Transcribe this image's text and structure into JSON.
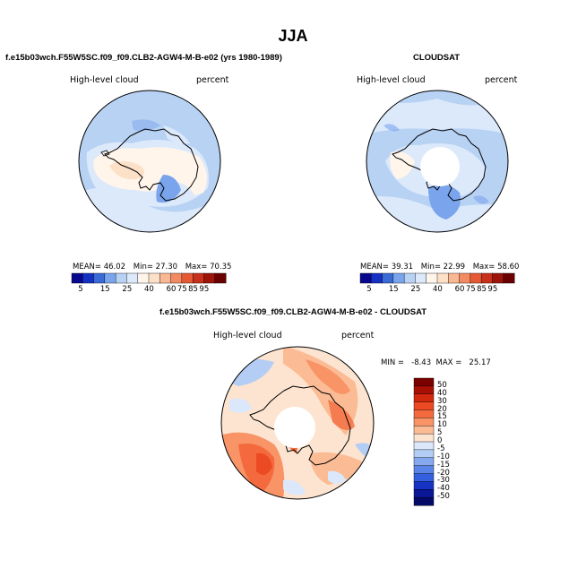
{
  "title": "JJA",
  "panels": {
    "model": {
      "run_title": "f.e15b03wch.F55W5SC.f09_f09.CLB2-AGW4-M-B-e02 (yrs 1980-1989)",
      "variable": "High-level cloud",
      "units": "percent",
      "mean_label": "MEAN=",
      "mean": "46.02",
      "min_label": "Min=",
      "min": "27.30",
      "max_label": "Max=",
      "max": "70.35"
    },
    "obs": {
      "run_title": "CLOUDSAT",
      "variable": "High-level cloud",
      "units": "percent",
      "mean_label": "MEAN=",
      "mean": "39.31",
      "min_label": "Min=",
      "min": "22.99",
      "max_label": "Max=",
      "max": "58.60"
    },
    "diff": {
      "run_title": "f.e15b03wch.F55W5SC.f09_f09.CLB2-AGW4-M-B-e02 - CLOUDSAT",
      "variable": "High-level cloud",
      "units": "percent",
      "minmax_text": "MIN =   -8.43  MAX =   25.17"
    }
  },
  "absolute_colorbar": {
    "labels": [
      "5",
      "15",
      "25",
      "40",
      "60",
      "75",
      "85",
      "95"
    ],
    "colors": [
      "#08088f",
      "#1531c4",
      "#3a6ad6",
      "#7aa4ec",
      "#b8d2f4",
      "#dbe9fb",
      "#fff5ea",
      "#fce0c8",
      "#f8b893",
      "#f28a62",
      "#e55a35",
      "#c7301a",
      "#9c1508",
      "#6a0000"
    ]
  },
  "diff_colorbar": {
    "labels": [
      "50",
      "40",
      "30",
      "20",
      "15",
      "10",
      "5",
      "0",
      "-5",
      "-10",
      "-15",
      "-20",
      "-30",
      "-40",
      "-50"
    ],
    "colors": [
      "#7a0000",
      "#a81005",
      "#d2280d",
      "#ec4a22",
      "#f46a3e",
      "#f89466",
      "#fbbc95",
      "#fde4d0",
      "#dbe7fb",
      "#b3cdf5",
      "#85a8ee",
      "#5a85e6",
      "#3460de",
      "#1633c4",
      "#0a1796",
      "#040a66"
    ]
  }
}
